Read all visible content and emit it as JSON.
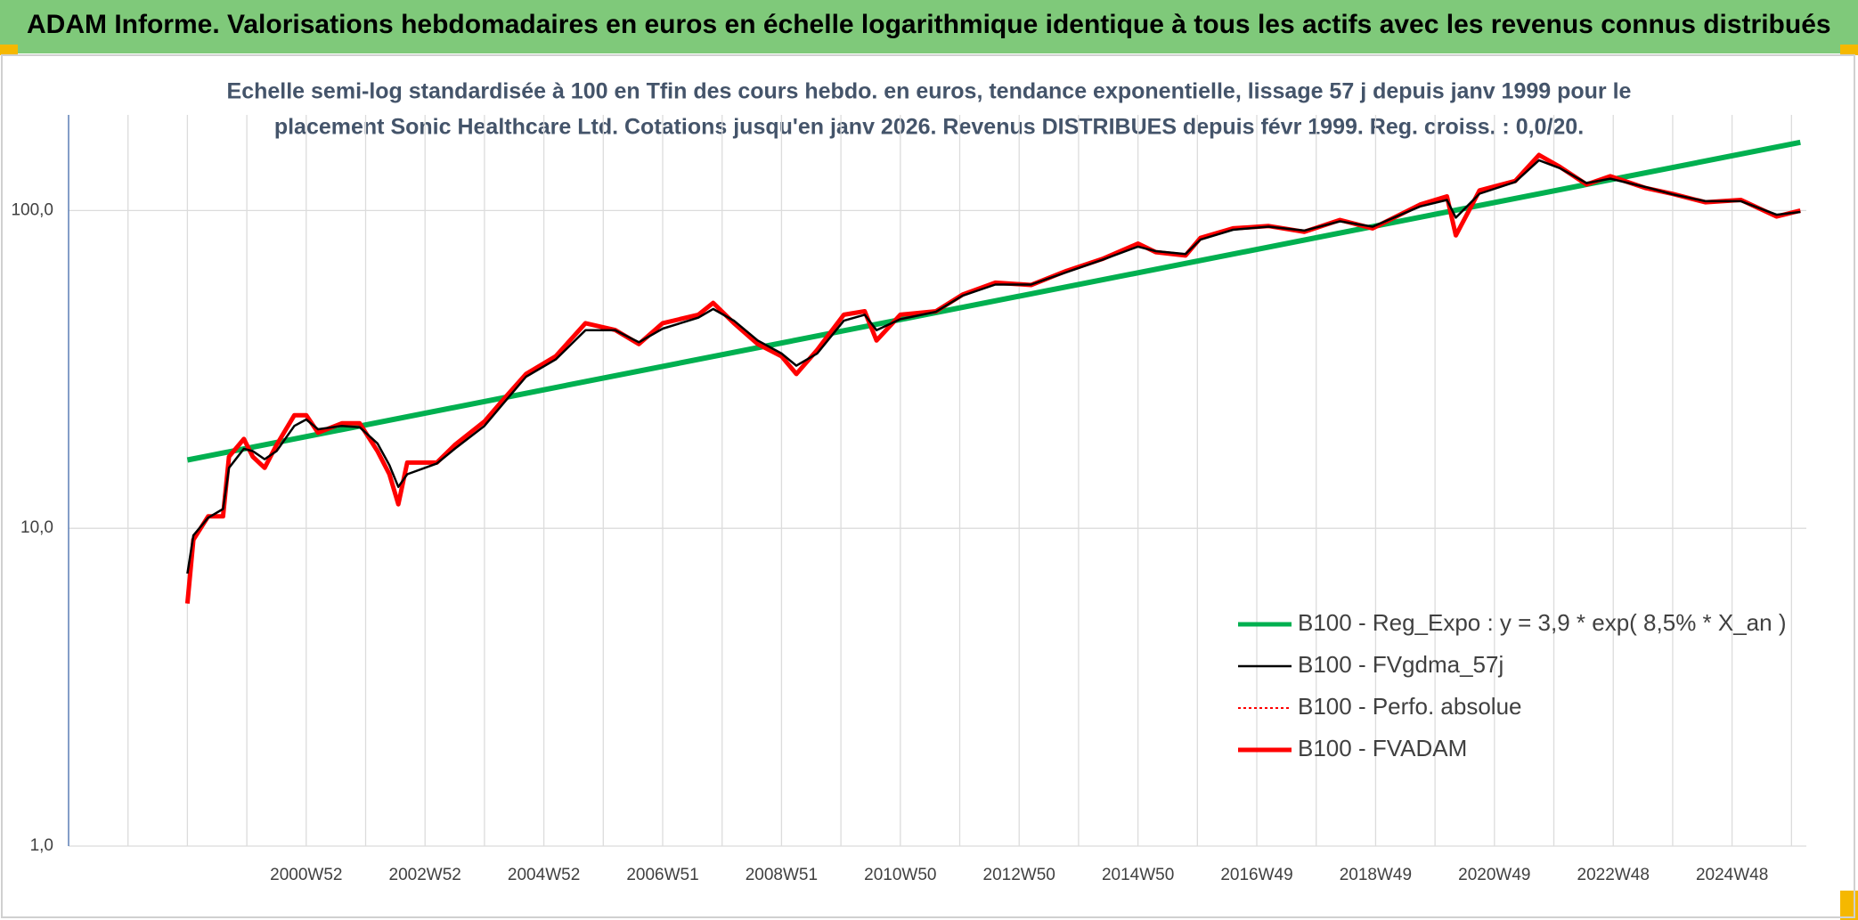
{
  "header": {
    "title": "ADAM Informe. Valorisations hebdomadaires en euros en échelle logarithmique identique à tous les actifs avec les revenus connus distribués"
  },
  "chart_data": {
    "type": "line",
    "subtitle": [
      "Echelle semi-log standardisée à 100 en Tfin des cours hebdo. en euros, tendance exponentielle, lissage 57 j depuis janv 1999 pour le",
      "placement Sonic Healthcare Ltd. Cotations jusqu'en janv 2026. Revenus DISTRIBUES depuis févr 1999. Reg. croiss. : 0,0/20."
    ],
    "log_y": true,
    "grid": true,
    "legend": "lower right",
    "xlim": [
      1997,
      2026.25
    ],
    "ylim": [
      1,
      200
    ],
    "yticks": [
      {
        "value": 1,
        "label": "1,0"
      },
      {
        "value": 10,
        "label": "10,0"
      },
      {
        "value": 100,
        "label": "100,0"
      }
    ],
    "xticks": [
      {
        "value": 2001,
        "label": "2000W52"
      },
      {
        "value": 2003,
        "label": "2002W52"
      },
      {
        "value": 2005,
        "label": "2004W52"
      },
      {
        "value": 2007,
        "label": "2006W51"
      },
      {
        "value": 2009,
        "label": "2008W51"
      },
      {
        "value": 2011,
        "label": "2010W50"
      },
      {
        "value": 2013,
        "label": "2012W50"
      },
      {
        "value": 2015,
        "label": "2014W50"
      },
      {
        "value": 2017,
        "label": "2016W49"
      },
      {
        "value": 2019,
        "label": "2018W49"
      },
      {
        "value": 2021,
        "label": "2020W49"
      },
      {
        "value": 2023,
        "label": "2022W48"
      },
      {
        "value": 2025,
        "label": "2024W48"
      }
    ],
    "xgrid_minor": [
      1998,
      1999,
      2000,
      2002,
      2004,
      2006,
      2008,
      2010,
      2012,
      2014,
      2016,
      2018,
      2020,
      2022,
      2024,
      2026
    ],
    "x": [
      1999.0,
      1999.1,
      1999.35,
      1999.6,
      1999.7,
      1999.95,
      2000.1,
      2000.3,
      2000.5,
      2000.8,
      2001.0,
      2001.2,
      2001.6,
      2001.9,
      2002.2,
      2002.4,
      2002.55,
      2002.7,
      2003.2,
      2003.5,
      2004.0,
      2004.3,
      2004.7,
      2005.2,
      2005.7,
      2006.2,
      2006.6,
      2007.0,
      2007.6,
      2007.85,
      2008.2,
      2008.6,
      2009.0,
      2009.25,
      2009.6,
      2010.05,
      2010.4,
      2010.6,
      2011.0,
      2011.6,
      2012.05,
      2012.6,
      2013.2,
      2013.8,
      2014.4,
      2015.0,
      2015.3,
      2015.8,
      2016.05,
      2016.6,
      2017.2,
      2017.8,
      2018.4,
      2018.95,
      2019.75,
      2020.2,
      2020.35,
      2020.75,
      2021.35,
      2021.75,
      2022.1,
      2022.55,
      2022.95,
      2023.55,
      2024.0,
      2024.55,
      2025.15,
      2025.75,
      2026.15
    ],
    "series": [
      {
        "name": "B100 - Reg_Expo : y = 3,9 * exp( 8,5% *  X_an )",
        "color": "#00b050",
        "style": "solid",
        "width": 6,
        "x": [
          1999.0,
          2026.15
        ],
        "values": [
          16.4,
          164
        ]
      },
      {
        "name": "B100 - FVgdma_57j",
        "color": "#000000",
        "style": "solid",
        "width": 2.5,
        "values": [
          7.2,
          9.5,
          10.8,
          11.5,
          15.5,
          17.8,
          17.5,
          16.5,
          17.5,
          21,
          22,
          20.5,
          21,
          20.8,
          18.5,
          15.8,
          13.5,
          14.8,
          16,
          17.8,
          21,
          24.5,
          30,
          34,
          42,
          42,
          38.5,
          42.5,
          46,
          49,
          45,
          39,
          35.5,
          32.5,
          35.5,
          45,
          47,
          42,
          45.5,
          48,
          54,
          58.5,
          58.5,
          64,
          70,
          77,
          74.5,
          73,
          81,
          87,
          89,
          86.5,
          92.5,
          89,
          103,
          108,
          95,
          113,
          123,
          144,
          136,
          122,
          126,
          118.5,
          112.5,
          107,
          107,
          97,
          99
        ]
      },
      {
        "name": "B100 - Perfo. absolue",
        "color": "#ff0000",
        "style": "dotted",
        "width": 2,
        "values": [
          5.8,
          9.2,
          10.9,
          10.9,
          16.8,
          19.1,
          16.8,
          15.5,
          18.3,
          22.7,
          22.7,
          20,
          21.4,
          21.4,
          17.5,
          14.8,
          11.9,
          16.1,
          16.1,
          18.3,
          21.7,
          25.2,
          30.6,
          34.8,
          44.2,
          42.1,
          38,
          44.2,
          47,
          51.2,
          44.2,
          38,
          34.8,
          30.6,
          36.4,
          47,
          48.2,
          39,
          47,
          48.2,
          54.4,
          59.3,
          58.3,
          64.6,
          70.4,
          78.7,
          74,
          72.2,
          82,
          87.9,
          89.4,
          85.7,
          93.4,
          87.9,
          104.4,
          110.8,
          83.5,
          115.7,
          123.9,
          149.6,
          137.3,
          120.8,
          128.2,
          117.7,
          112.8,
          106.2,
          108,
          95.8,
          100
        ]
      },
      {
        "name": "B100 - FVADAM",
        "color": "#ff0000",
        "style": "solid",
        "width": 5,
        "values": [
          5.8,
          9.2,
          10.9,
          10.9,
          16.8,
          19.1,
          16.8,
          15.5,
          18.3,
          22.7,
          22.7,
          20,
          21.4,
          21.4,
          17.5,
          14.8,
          11.9,
          16.1,
          16.1,
          18.3,
          21.7,
          25.2,
          30.6,
          34.8,
          44.2,
          42.1,
          38,
          44.2,
          47,
          51.2,
          44.2,
          38,
          34.8,
          30.6,
          36.4,
          47,
          48.2,
          39,
          47,
          48.2,
          54.4,
          59.3,
          58.3,
          64.6,
          70.4,
          78.7,
          74,
          72.2,
          82,
          87.9,
          89.4,
          85.7,
          93.4,
          87.9,
          104.4,
          110.8,
          83.5,
          115.7,
          123.9,
          149.6,
          137.3,
          120.8,
          128.2,
          117.7,
          112.8,
          106.2,
          108,
          95.8,
          100
        ]
      }
    ]
  }
}
